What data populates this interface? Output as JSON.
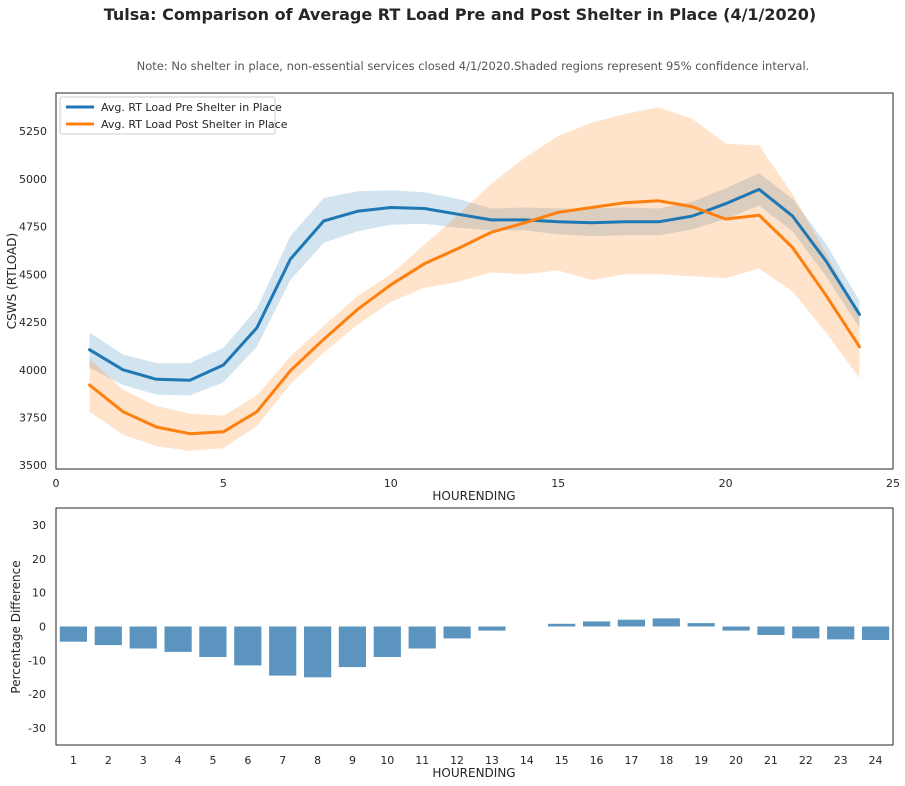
{
  "figure": {
    "title": "Tulsa: Comparison of Average RT Load Pre and Post Shelter in Place (4/1/2020)",
    "note": "Note: No shelter in place, non-essential services closed 4/1/2020.Shaded regions represent 95% confidence interval."
  },
  "chart_data": [
    {
      "type": "line",
      "title": "",
      "xlabel": "HOURENDING",
      "ylabel": "CSWS (RTLOAD)",
      "xlim": [
        0,
        25
      ],
      "ylim": [
        3480,
        5450
      ],
      "xticks": [
        0,
        5,
        10,
        15,
        20,
        25
      ],
      "yticks": [
        3500,
        3750,
        4000,
        4250,
        4500,
        4750,
        5000,
        5250
      ],
      "grid": false,
      "legend_position": "top-left",
      "x": [
        1,
        2,
        3,
        4,
        5,
        6,
        7,
        8,
        9,
        10,
        11,
        12,
        13,
        14,
        15,
        16,
        17,
        18,
        19,
        20,
        21,
        22,
        23,
        24
      ],
      "series": [
        {
          "name": "Avg. RT Load Pre Shelter in Place",
          "color": "#1f77b4",
          "values": [
            4105,
            4000,
            3950,
            3945,
            4025,
            4220,
            4580,
            4780,
            4830,
            4850,
            4845,
            4815,
            4785,
            4785,
            4775,
            4770,
            4775,
            4775,
            4805,
            4870,
            4945,
            4805,
            4570,
            4290
          ],
          "ci_lower": [
            4010,
            3920,
            3870,
            3865,
            3935,
            4120,
            4470,
            4665,
            4725,
            4760,
            4765,
            4745,
            4730,
            4730,
            4710,
            4700,
            4705,
            4705,
            4735,
            4790,
            4860,
            4725,
            4490,
            4220
          ],
          "ci_upper": [
            4195,
            4080,
            4035,
            4035,
            4115,
            4320,
            4700,
            4900,
            4935,
            4940,
            4930,
            4895,
            4845,
            4850,
            4845,
            4845,
            4850,
            4845,
            4880,
            4950,
            5030,
            4895,
            4660,
            4360
          ]
        },
        {
          "name": "Avg. RT Load Post Shelter in Place",
          "color": "#ff7f0e",
          "values": [
            3920,
            3780,
            3700,
            3665,
            3675,
            3780,
            3995,
            4160,
            4315,
            4445,
            4555,
            4635,
            4720,
            4770,
            4825,
            4850,
            4875,
            4885,
            4855,
            4790,
            4810,
            4640,
            4390,
            4120
          ],
          "ci_lower": [
            3780,
            3660,
            3600,
            3575,
            3590,
            3705,
            3925,
            4090,
            4235,
            4355,
            4430,
            4460,
            4510,
            4500,
            4520,
            4470,
            4500,
            4500,
            4490,
            4480,
            4530,
            4410,
            4195,
            3955
          ],
          "ci_upper": [
            4060,
            3895,
            3810,
            3770,
            3760,
            3865,
            4070,
            4230,
            4385,
            4500,
            4655,
            4810,
            4975,
            5110,
            5225,
            5295,
            5340,
            5375,
            5315,
            5185,
            5175,
            4920,
            4610,
            4290
          ]
        }
      ]
    },
    {
      "type": "bar",
      "title": "",
      "xlabel": "HOURENDING",
      "ylabel": "Percentage Difference",
      "ylim": [
        -35,
        35
      ],
      "yticks": [
        -30,
        -20,
        -10,
        0,
        10,
        20,
        30
      ],
      "grid": false,
      "color": "#5b95bf",
      "categories": [
        "1",
        "2",
        "3",
        "4",
        "5",
        "6",
        "7",
        "8",
        "9",
        "10",
        "11",
        "12",
        "13",
        "14",
        "15",
        "16",
        "17",
        "18",
        "19",
        "20",
        "21",
        "22",
        "23",
        "24"
      ],
      "values": [
        -4.5,
        -5.5,
        -6.5,
        -7.5,
        -9,
        -11.5,
        -14.5,
        -15,
        -12,
        -9,
        -6.5,
        -3.5,
        -1.2,
        0,
        0.8,
        1.5,
        2,
        2.4,
        1,
        -1.2,
        -2.5,
        -3.5,
        -3.8,
        -4
      ]
    }
  ]
}
